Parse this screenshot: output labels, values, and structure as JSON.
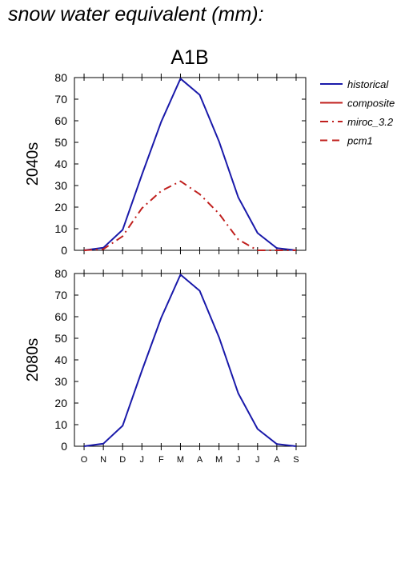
{
  "title": "snow water equivalent (mm):",
  "chart_data": {
    "type": "line",
    "scenario": "A1B",
    "categories": [
      "O",
      "N",
      "D",
      "J",
      "F",
      "M",
      "A",
      "M",
      "J",
      "J",
      "A",
      "S"
    ],
    "ylim": [
      0,
      80
    ],
    "yticks": [
      0,
      10,
      20,
      30,
      40,
      50,
      60,
      70,
      80
    ],
    "grid": false,
    "legend_position": "right",
    "legend": [
      {
        "label": "historical",
        "color": "#1a1aaa",
        "dash": "solid"
      },
      {
        "label": "composite",
        "color": "#c0201e",
        "dash": "solid"
      },
      {
        "label": "miroc_3.2",
        "color": "#c0201e",
        "dash": "dashdot"
      },
      {
        "label": "pcm1",
        "color": "#c0201e",
        "dash": "dashed"
      }
    ],
    "panels": [
      {
        "label": "2040s",
        "series": [
          {
            "name": "historical",
            "color": "#1a1aaa",
            "dash": "solid",
            "values": [
              0,
              1.2,
              9.5,
              35,
              59.5,
              79.5,
              72,
              50.5,
              24.5,
              8,
              1,
              0
            ]
          },
          {
            "name": "miroc_3.2",
            "color": "#c0201e",
            "dash": "dashdot",
            "values": [
              0,
              0.5,
              6.5,
              19.5,
              27.5,
              32,
              26,
              17,
              5,
              0,
              0,
              0
            ]
          }
        ]
      },
      {
        "label": "2080s",
        "series": [
          {
            "name": "historical",
            "color": "#1a1aaa",
            "dash": "solid",
            "values": [
              0,
              1.2,
              9.5,
              35,
              59.5,
              79.5,
              72,
              50.5,
              24.5,
              8,
              1,
              0
            ]
          }
        ]
      }
    ]
  }
}
